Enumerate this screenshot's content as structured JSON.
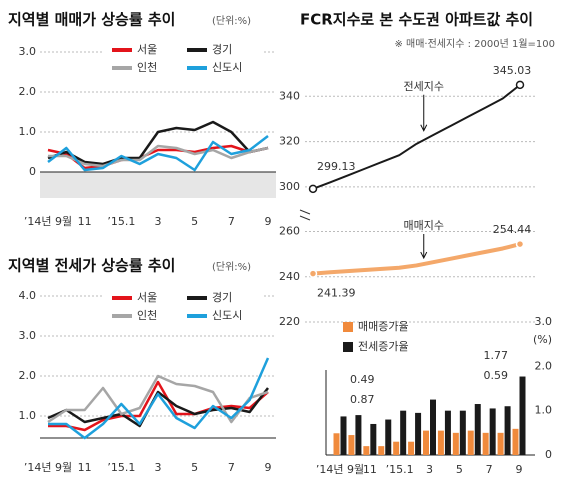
{
  "chart_data": [
    {
      "type": "line",
      "title": "지역별 매매가 상승률 추이",
      "subtitle": "(단위:%)",
      "categories": [
        "’14년 9월",
        null,
        "11",
        null,
        "’15.1",
        null,
        "3",
        null,
        "5",
        null,
        "7",
        null,
        "9"
      ],
      "ylim": [
        -0.65,
        3
      ],
      "yticks": [
        0,
        {
          "value": 1,
          "label": "1.0"
        },
        {
          "value": 2,
          "label": "2.0"
        },
        {
          "value": 3,
          "label": "3.0"
        }
      ],
      "grid": true,
      "series": [
        {
          "name": "서울",
          "color": "#e3141b",
          "values": [
            0.55,
            0.45,
            0.1,
            0.15,
            0.3,
            0.35,
            0.55,
            0.55,
            0.5,
            0.6,
            0.65,
            0.5,
            0.6
          ]
        },
        {
          "name": "경기",
          "color": "#1a1a1a",
          "values": [
            0.35,
            0.5,
            0.25,
            0.2,
            0.35,
            0.35,
            1.0,
            1.1,
            1.05,
            1.25,
            1.0,
            0.5,
            0.6
          ]
        },
        {
          "name": "인천",
          "color": "#a6a6a6",
          "values": [
            0.4,
            0.4,
            0.2,
            0.15,
            0.3,
            0.3,
            0.65,
            0.6,
            0.45,
            0.55,
            0.35,
            0.5,
            0.6
          ]
        },
        {
          "name": "신도시",
          "color": "#1ea0dc",
          "values": [
            0.25,
            0.6,
            0.05,
            0.1,
            0.4,
            0.2,
            0.45,
            0.35,
            0.05,
            0.75,
            0.45,
            0.55,
            0.9
          ]
        }
      ]
    },
    {
      "type": "line",
      "title": "지역별 전세가 상승률 추이",
      "subtitle": "(단위:%)",
      "categories": [
        "’14년 9월",
        null,
        "11",
        null,
        "’15.1",
        null,
        "3",
        null,
        "5",
        null,
        "7",
        null,
        "9"
      ],
      "ylim": [
        0.45,
        4
      ],
      "yticks": [
        {
          "value": 1,
          "label": "1.0"
        },
        {
          "value": 2,
          "label": "2.0"
        },
        {
          "value": 3,
          "label": "3.0"
        },
        {
          "value": 4,
          "label": "4.0"
        }
      ],
      "grid": true,
      "series": [
        {
          "name": "서울",
          "color": "#e3141b",
          "values": [
            0.75,
            0.75,
            0.65,
            0.9,
            1.0,
            1.0,
            1.85,
            1.05,
            1.05,
            1.2,
            1.25,
            1.2,
            1.6
          ]
        },
        {
          "name": "경기",
          "color": "#1a1a1a",
          "values": [
            0.95,
            1.15,
            0.85,
            0.95,
            1.05,
            0.75,
            1.6,
            1.25,
            1.05,
            1.15,
            1.2,
            1.1,
            1.7
          ]
        },
        {
          "name": "인천",
          "color": "#a6a6a6",
          "values": [
            0.85,
            1.15,
            1.15,
            1.7,
            1.05,
            1.2,
            2.0,
            1.8,
            1.75,
            1.6,
            0.85,
            1.45,
            1.6
          ]
        },
        {
          "name": "신도시",
          "color": "#1ea0dc",
          "values": [
            0.8,
            0.8,
            0.45,
            0.8,
            1.3,
            0.8,
            1.55,
            0.95,
            0.7,
            1.25,
            0.95,
            1.4,
            2.45
          ]
        }
      ]
    },
    {
      "type": "line",
      "title": "FCR지수로 본 수도권 아파트값 추이",
      "subtitle": "※ 매매·전세지수 : 2000년 1월=100",
      "grid": true,
      "series": [
        {
          "name": "전세지수",
          "color": "#1a1a1a",
          "ylim": [
            292,
            356
          ],
          "yticks": [
            300,
            320,
            340
          ],
          "values": [
            299.13,
            302,
            305,
            308,
            311,
            314,
            319,
            323,
            327,
            331,
            335,
            339,
            345.03
          ]
        },
        {
          "name": "매매지수",
          "color": "#f4a86a",
          "ylim": [
            220,
            262
          ],
          "yticks": [
            220,
            240,
            260
          ],
          "values": [
            241.39,
            242,
            242.5,
            243,
            243.5,
            244,
            245,
            246.5,
            248,
            249.5,
            251,
            252.5,
            254.44
          ]
        }
      ]
    },
    {
      "type": "bar",
      "y_label": "(%)",
      "categories": [
        "’14년 9월",
        null,
        "11",
        null,
        "’15.1",
        null,
        "3",
        null,
        "5",
        null,
        "7",
        null,
        "9"
      ],
      "ylim": [
        0,
        3
      ],
      "yticks": [
        0,
        {
          "value": 1,
          "label": "1.0"
        },
        {
          "value": 2,
          "label": "2.0"
        },
        {
          "value": 3,
          "label": "3.0"
        }
      ],
      "series": [
        {
          "name": "매매증가율",
          "color": "#f08a3c",
          "values": [
            0.49,
            0.45,
            0.2,
            0.2,
            0.3,
            0.3,
            0.55,
            0.55,
            0.5,
            0.55,
            0.5,
            0.5,
            0.59
          ]
        },
        {
          "name": "전세증가율",
          "color": "#1a1a1a",
          "values": [
            0.87,
            0.9,
            0.7,
            0.8,
            1.0,
            0.95,
            1.25,
            1.0,
            1.0,
            1.15,
            1.05,
            1.1,
            1.77
          ]
        }
      ]
    }
  ]
}
